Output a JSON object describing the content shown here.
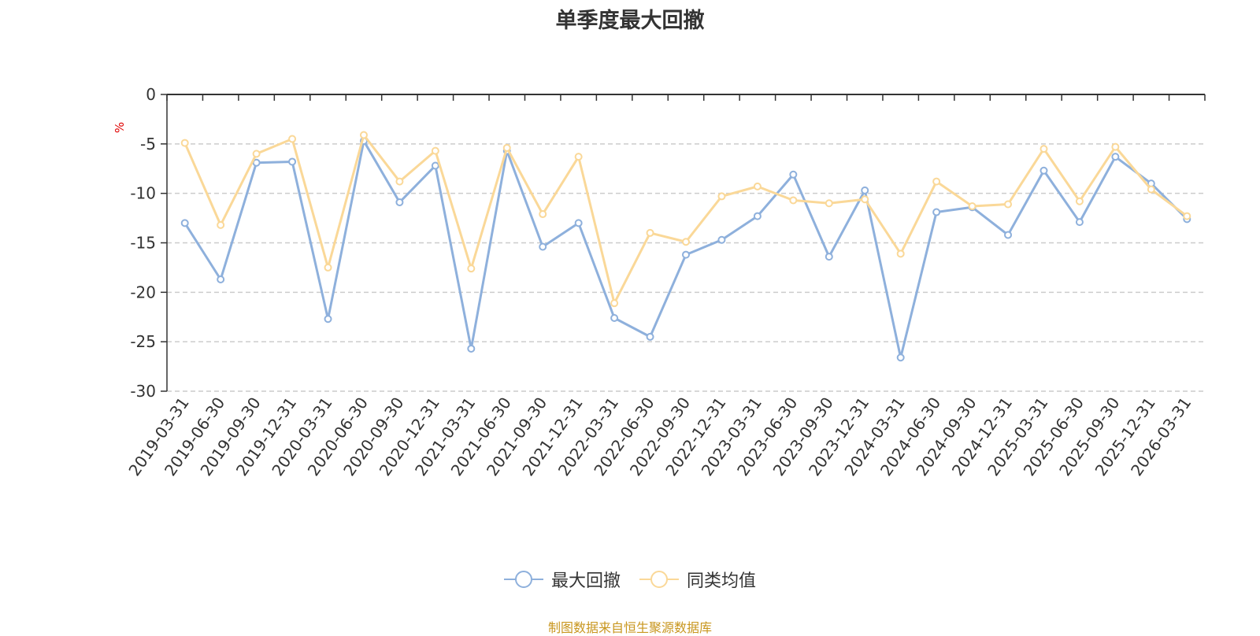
{
  "title": "单季度最大回撤",
  "source_note": "制图数据来自恒生聚源数据库",
  "chart_data": {
    "type": "line",
    "ylabel": "%",
    "ylim": [
      -30,
      0
    ],
    "yticks": [
      0,
      -5,
      -10,
      -15,
      -20,
      -25,
      -30
    ],
    "grid": true,
    "legend_position": "bottom",
    "categories": [
      "2019-03-31",
      "2019-06-30",
      "2019-09-30",
      "2019-12-31",
      "2020-03-31",
      "2020-06-30",
      "2020-09-30",
      "2020-12-31",
      "2021-03-31",
      "2021-06-30",
      "2021-09-30",
      "2021-12-31",
      "2022-03-31",
      "2022-06-30",
      "2022-09-30",
      "2022-12-31",
      "2023-03-31",
      "2023-06-30",
      "2023-09-30",
      "2023-12-31",
      "2024-03-31",
      "2024-06-30",
      "2024-09-30",
      "2024-12-31",
      "2025-03-31",
      "2025-06-30",
      "2025-09-30",
      "2025-12-31",
      "2026-03-31"
    ],
    "series": [
      {
        "name": "最大回撤",
        "color": "#8eb0dc",
        "values": [
          -13.0,
          -18.7,
          -6.9,
          -6.8,
          -22.7,
          -4.7,
          -10.9,
          -7.2,
          -25.7,
          -5.7,
          -15.4,
          -13.0,
          -22.6,
          -24.5,
          -16.2,
          -14.7,
          -12.3,
          -8.1,
          -16.4,
          -9.7,
          -26.6,
          -11.9,
          -11.4,
          -14.2,
          -7.7,
          -12.9,
          -6.3,
          -9.0,
          -12.6
        ]
      },
      {
        "name": "同类均值",
        "color": "#fad898",
        "values": [
          -4.9,
          -13.2,
          -6.0,
          -4.5,
          -17.5,
          -4.1,
          -8.8,
          -5.7,
          -17.6,
          -5.4,
          -12.1,
          -6.3,
          -21.1,
          -14.0,
          -14.9,
          -10.3,
          -9.3,
          -10.7,
          -11.0,
          -10.6,
          -16.1,
          -8.8,
          -11.3,
          -11.1,
          -5.5,
          -10.8,
          -5.3,
          -9.6,
          -12.3
        ]
      }
    ]
  }
}
